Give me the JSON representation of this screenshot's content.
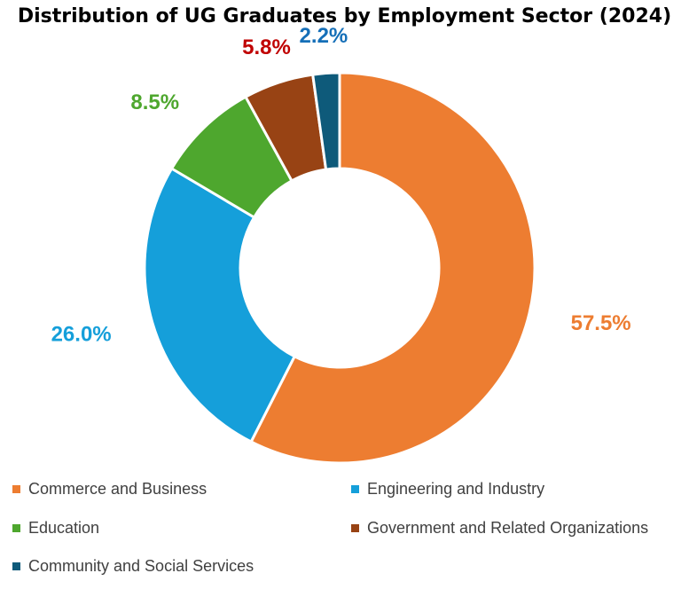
{
  "chart_data": {
    "type": "pie",
    "donut": true,
    "title": "Distribution of UG Graduates by Employment Sector (2024)",
    "categories": [
      "Commerce and Business",
      "Engineering and Industry",
      "Education",
      "Government and Related Organizations",
      "Community and Social Services"
    ],
    "values": [
      57.5,
      26.0,
      8.5,
      5.8,
      2.2
    ],
    "data_labels": [
      "57.5%",
      "26.0%",
      "8.5%",
      "5.8%",
      "2.2%"
    ],
    "colors": [
      "#ED7D31",
      "#159FDA",
      "#4EA72E",
      "#984314",
      "#0E5A7A"
    ],
    "label_colors": [
      "#ED7D31",
      "#159FDA",
      "#4EA72E",
      "#C00000",
      "#156FB8"
    ],
    "legend_position": "bottom"
  }
}
